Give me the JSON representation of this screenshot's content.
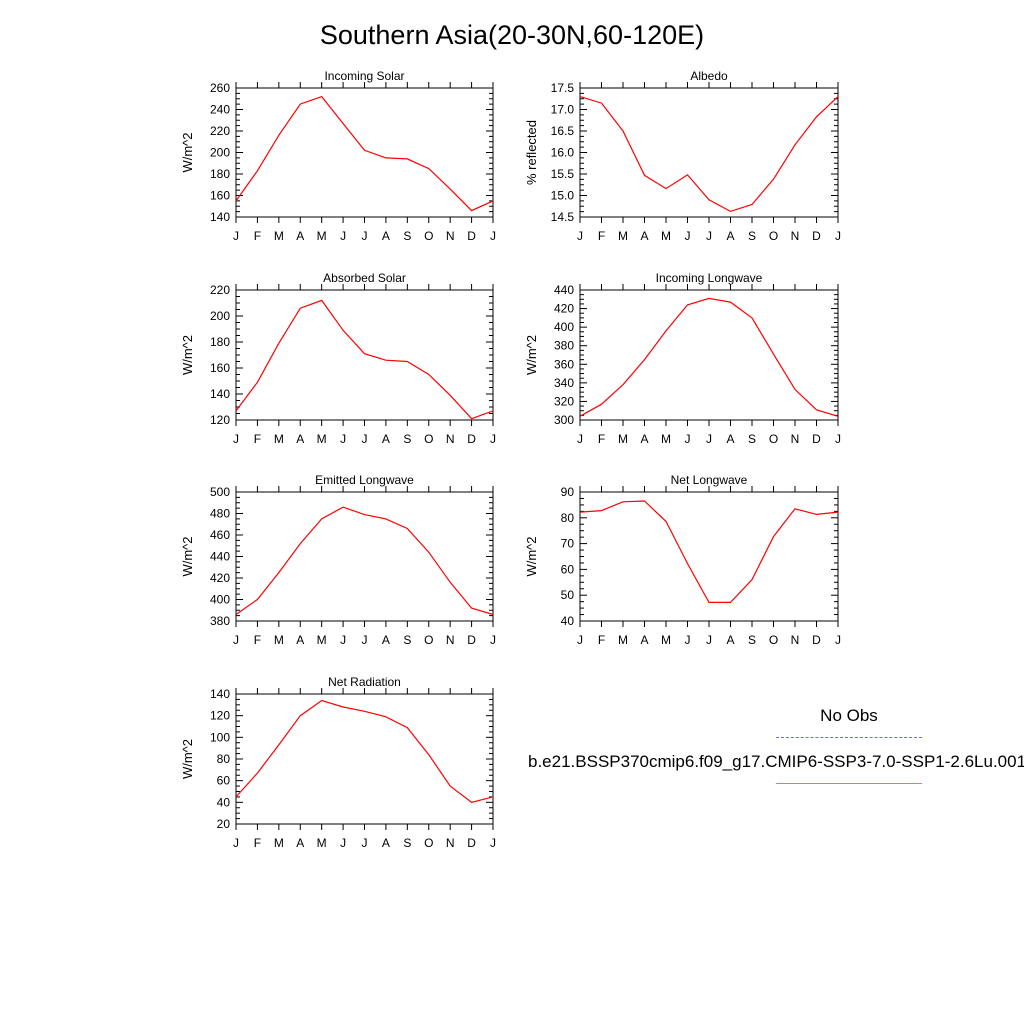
{
  "title": "Southern Asia(20-30N,60-120E)",
  "months": [
    "J",
    "F",
    "M",
    "A",
    "M",
    "J",
    "J",
    "A",
    "S",
    "O",
    "N",
    "D",
    "J"
  ],
  "legend": {
    "obs_label": "No Obs",
    "model_label": "b.e21.BSSP370cmip6.f09_g17.CMIP6-SSP3-7.0-SSP1-2.6Lu.001",
    "obs_color": "#6b6bd9",
    "model_color": "#e07a7a"
  },
  "chart_data": [
    {
      "type": "line",
      "title": "Incoming Solar",
      "ylabel": "W/m^2",
      "ylim": [
        140,
        260
      ],
      "yticks": [
        140,
        160,
        180,
        200,
        220,
        240,
        260
      ],
      "series": [
        {
          "values": [
            155,
            183,
            216,
            245,
            252,
            227,
            202,
            195,
            194,
            185,
            166,
            146,
            155
          ],
          "color": "#ff0000"
        }
      ]
    },
    {
      "type": "line",
      "title": "Albedo",
      "ylabel": "% reflected",
      "ylim": [
        14.5,
        17.5
      ],
      "yticks": [
        "14.5",
        "15.0",
        "15.5",
        "16.0",
        "16.5",
        "17.0",
        "17.5"
      ],
      "series": [
        {
          "values": [
            17.3,
            17.15,
            16.5,
            15.47,
            15.16,
            15.48,
            14.9,
            14.63,
            14.79,
            15.38,
            16.18,
            16.83,
            17.3
          ],
          "color": "#ff0000"
        }
      ]
    },
    {
      "type": "line",
      "title": "Absorbed Solar",
      "ylabel": "W/m^2",
      "ylim": [
        120,
        220
      ],
      "yticks": [
        120,
        140,
        160,
        180,
        200,
        220
      ],
      "series": [
        {
          "values": [
            127,
            149,
            179,
            206,
            212,
            189,
            171,
            166,
            165,
            155,
            139,
            121,
            127
          ],
          "color": "#ff0000"
        }
      ]
    },
    {
      "type": "line",
      "title": "Incoming Longwave",
      "ylabel": "W/m^2",
      "ylim": [
        300,
        440
      ],
      "yticks": [
        300,
        320,
        340,
        360,
        380,
        400,
        420,
        440
      ],
      "series": [
        {
          "values": [
            304,
            317,
            338,
            365,
            396,
            424,
            431,
            427,
            410,
            371,
            333,
            311,
            304
          ],
          "color": "#ff0000"
        }
      ]
    },
    {
      "type": "line",
      "title": "Emitted Longwave",
      "ylabel": "W/m^2",
      "ylim": [
        380,
        500
      ],
      "yticks": [
        380,
        400,
        420,
        440,
        460,
        480,
        500
      ],
      "series": [
        {
          "values": [
            386,
            400,
            425,
            452,
            475,
            486,
            479,
            475,
            466,
            444,
            416,
            392,
            386
          ],
          "color": "#ff0000"
        }
      ]
    },
    {
      "type": "line",
      "title": "Net Longwave",
      "ylabel": "W/m^2",
      "ylim": [
        40,
        90
      ],
      "yticks": [
        40,
        50,
        60,
        70,
        80,
        90
      ],
      "series": [
        {
          "values": [
            82.2,
            82.8,
            86.2,
            86.5,
            78.6,
            62.3,
            47.2,
            47.2,
            56,
            72.7,
            83.5,
            81.3,
            82.2
          ],
          "color": "#ff0000"
        }
      ]
    },
    {
      "type": "line",
      "title": "Net Radiation",
      "ylabel": "W/m^2",
      "ylim": [
        20,
        140
      ],
      "yticks": [
        20,
        40,
        60,
        80,
        100,
        120,
        140
      ],
      "series": [
        {
          "values": [
            45,
            67,
            93,
            120,
            134,
            128,
            124,
            119,
            109,
            84,
            55,
            40,
            45
          ],
          "color": "#ff0000"
        }
      ]
    }
  ]
}
